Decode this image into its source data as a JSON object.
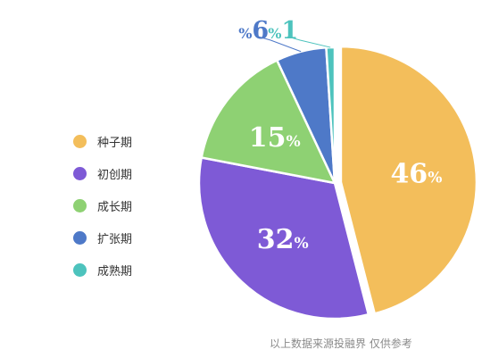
{
  "chart_data": {
    "type": "pie",
    "categories": [
      "种子期",
      "初创期",
      "成长期",
      "扩张期",
      "成熟期"
    ],
    "values": [
      46,
      32,
      15,
      6,
      1
    ],
    "value_suffix": "%",
    "colors": [
      "#F3BE5B",
      "#7E5AD6",
      "#8ED173",
      "#4E79C8",
      "#4DC3BD"
    ],
    "exploded": "种子期",
    "title": "",
    "legend_position": "left"
  },
  "source_note": "以上数据来源投融界 仅供参考"
}
